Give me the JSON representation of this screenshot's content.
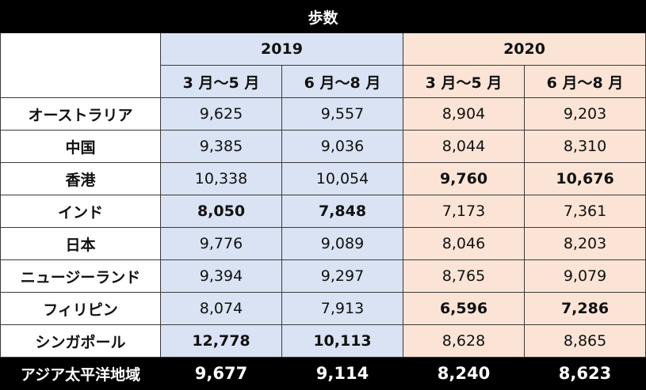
{
  "title": "歩数",
  "years": [
    "2019",
    "2020"
  ],
  "periods": [
    "3 月～5 月",
    "6 月～8 月",
    "3 月～5 月",
    "6 月～8 月"
  ],
  "colors": {
    "year_2019_bg": "#dae3f3",
    "year_2020_bg": "#fbe4d5",
    "title_bg": "#000000"
  },
  "rows": [
    {
      "label": "オーストラリア",
      "values": [
        "9,625",
        "9,557",
        "8,904",
        "9,203"
      ],
      "bold": [
        false,
        false,
        false,
        false
      ]
    },
    {
      "label": "中国",
      "values": [
        "9,385",
        "9,036",
        "8,044",
        "8,310"
      ],
      "bold": [
        false,
        false,
        false,
        false
      ]
    },
    {
      "label": "香港",
      "values": [
        "10,338",
        "10,054",
        "9,760",
        "10,676"
      ],
      "bold": [
        false,
        false,
        true,
        true
      ]
    },
    {
      "label": "インド",
      "values": [
        "8,050",
        "7,848",
        "7,173",
        "7,361"
      ],
      "bold": [
        true,
        true,
        false,
        false
      ]
    },
    {
      "label": "日本",
      "values": [
        "9,776",
        "9,089",
        "8,046",
        "8,203"
      ],
      "bold": [
        false,
        false,
        false,
        false
      ]
    },
    {
      "label": "ニュージーランド",
      "values": [
        "9,394",
        "9,297",
        "8,765",
        "9,079"
      ],
      "bold": [
        false,
        false,
        false,
        false
      ]
    },
    {
      "label": "フィリピン",
      "values": [
        "8,074",
        "7,913",
        "6,596",
        "7,286"
      ],
      "bold": [
        false,
        false,
        true,
        true
      ]
    },
    {
      "label": "シンガポール",
      "values": [
        "12,778",
        "10,113",
        "8,628",
        "8,865"
      ],
      "bold": [
        true,
        true,
        false,
        false
      ]
    }
  ],
  "total": {
    "label": "アジア太平洋地域",
    "values": [
      "9,677",
      "9,114",
      "8,240",
      "8,623"
    ]
  }
}
